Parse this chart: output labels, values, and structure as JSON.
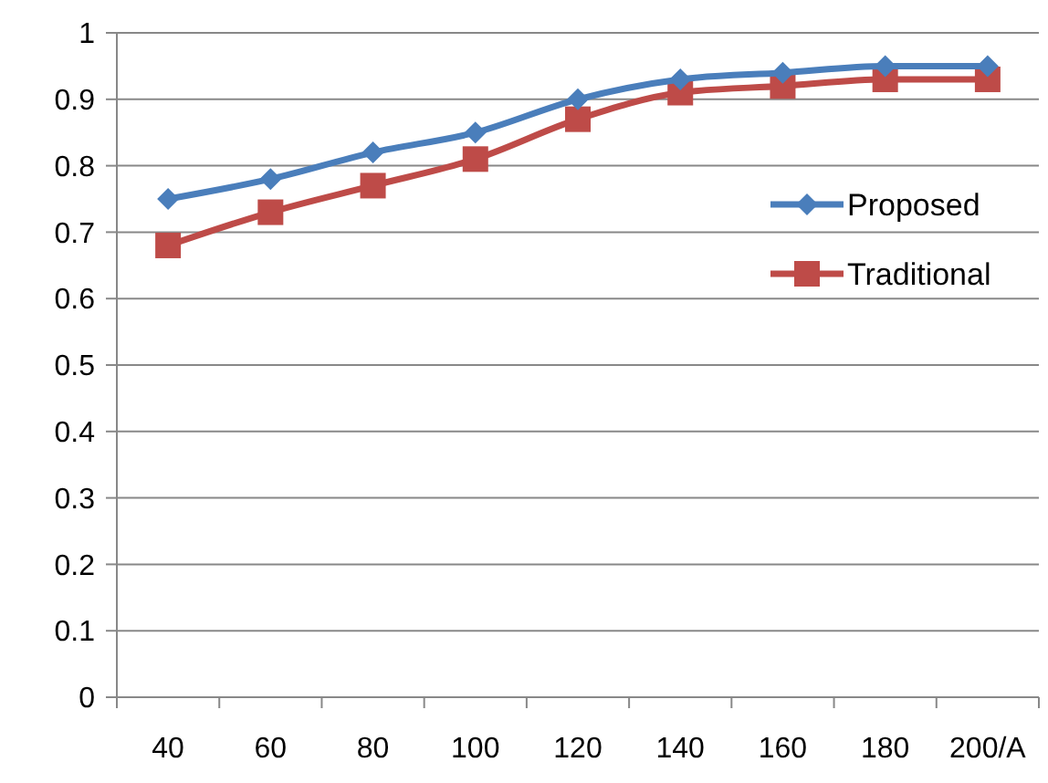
{
  "chart_data": {
    "type": "line",
    "categories": [
      "40",
      "60",
      "80",
      "100",
      "120",
      "140",
      "160",
      "180",
      "200/A"
    ],
    "series": [
      {
        "name": "Proposed",
        "color": "#4a7ebb",
        "marker": "diamond",
        "values": [
          0.75,
          0.78,
          0.82,
          0.85,
          0.9,
          0.93,
          0.94,
          0.95,
          0.95
        ]
      },
      {
        "name": "Traditional",
        "color": "#be4b48",
        "marker": "square",
        "values": [
          0.68,
          0.73,
          0.77,
          0.81,
          0.87,
          0.91,
          0.92,
          0.93,
          0.93
        ]
      }
    ],
    "ylim": [
      0,
      1
    ],
    "yticks": [
      0,
      0.1,
      0.2,
      0.3,
      0.4,
      0.5,
      0.6,
      0.7,
      0.8,
      0.9,
      1
    ],
    "grid": "y",
    "legend": "right"
  }
}
